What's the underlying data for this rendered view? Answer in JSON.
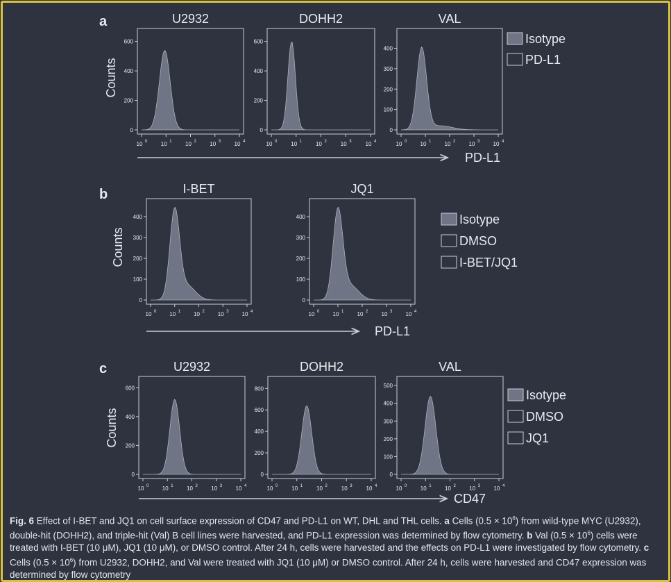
{
  "panel_a": {
    "letter": "a",
    "titles": [
      "U2932",
      "DOHH2",
      "VAL"
    ],
    "ylabel": "Counts",
    "axis_label": "PD-L1",
    "legend": [
      "Isotype",
      "PD-L1"
    ],
    "y_ticks": [
      [
        "0",
        "200",
        "400",
        "600"
      ],
      [
        "0",
        "200",
        "400",
        "600"
      ],
      [
        "0",
        "100",
        "200",
        "300",
        "400"
      ]
    ],
    "x_ticks": [
      "10",
      "10",
      "10",
      "10",
      "10"
    ],
    "x_exps": [
      "0",
      "1",
      "2",
      "3",
      "4"
    ]
  },
  "panel_b": {
    "letter": "b",
    "titles": [
      "I-BET",
      "JQ1"
    ],
    "ylabel": "Counts",
    "axis_label": "PD-L1",
    "legend": [
      "Isotype",
      "DMSO",
      "I-BET/JQ1"
    ],
    "y_ticks": [
      [
        "0",
        "100",
        "200",
        "300",
        "400"
      ],
      [
        "0",
        "100",
        "200",
        "300",
        "400"
      ]
    ],
    "x_ticks": [
      "10",
      "10",
      "10",
      "10",
      "10"
    ],
    "x_exps": [
      "0",
      "1",
      "2",
      "3",
      "4"
    ]
  },
  "panel_c": {
    "letter": "c",
    "titles": [
      "U2932",
      "DOHH2",
      "VAL"
    ],
    "ylabel": "Counts",
    "axis_label": "CD47",
    "legend": [
      "Isotype",
      "DMSO",
      "JQ1"
    ],
    "y_ticks": [
      [
        "0",
        "200",
        "400",
        "600"
      ],
      [
        "0",
        "200",
        "400",
        "600",
        "800"
      ],
      [
        "0",
        "100",
        "200",
        "300",
        "400",
        "500"
      ]
    ],
    "x_ticks": [
      "10",
      "10",
      "10",
      "10",
      "10"
    ],
    "x_exps": [
      "0",
      "1",
      "2",
      "3",
      "4"
    ]
  },
  "caption": {
    "fig_label": "Fig. 6",
    "p1": " Effect of I-BET and JQ1 on cell surface expression of CD47 and PD-L1 on WT, DHL and THL cells. ",
    "a_label": "a",
    "p2": " Cells (0.5 × 10",
    "p2_sup": "6",
    "p3": ") from wild-type MYC (U2932), double-hit (DOHH2), and triple-hit (Val) B cell lines were harvested, and PD-L1 expression was determined by flow cytometry. ",
    "b_label": "b",
    "p4": " Val (0.5 × 10",
    "p4_sup": "6",
    "p5": ") cells were treated with I-BET (10 μM), JQ1 (10 μM), or DMSO control. After 24 h, cells were harvested and the effects on PD-L1 were investigated by flow cytometry. ",
    "c_label": "c",
    "p6": " Cells (0.5 × 10",
    "p6_sup": "6",
    "p7": ") from U2932, DOHH2, and Val were treated with JQ1 (10 μM) or DMSO control. After 24 h, cells were harvested and CD47 expression was determined by flow cytometry"
  },
  "colors": {
    "background": "#2f3340",
    "border": "#d9c23b",
    "isotype_fill": "#6f7585",
    "line": "#e8eaf0"
  }
}
